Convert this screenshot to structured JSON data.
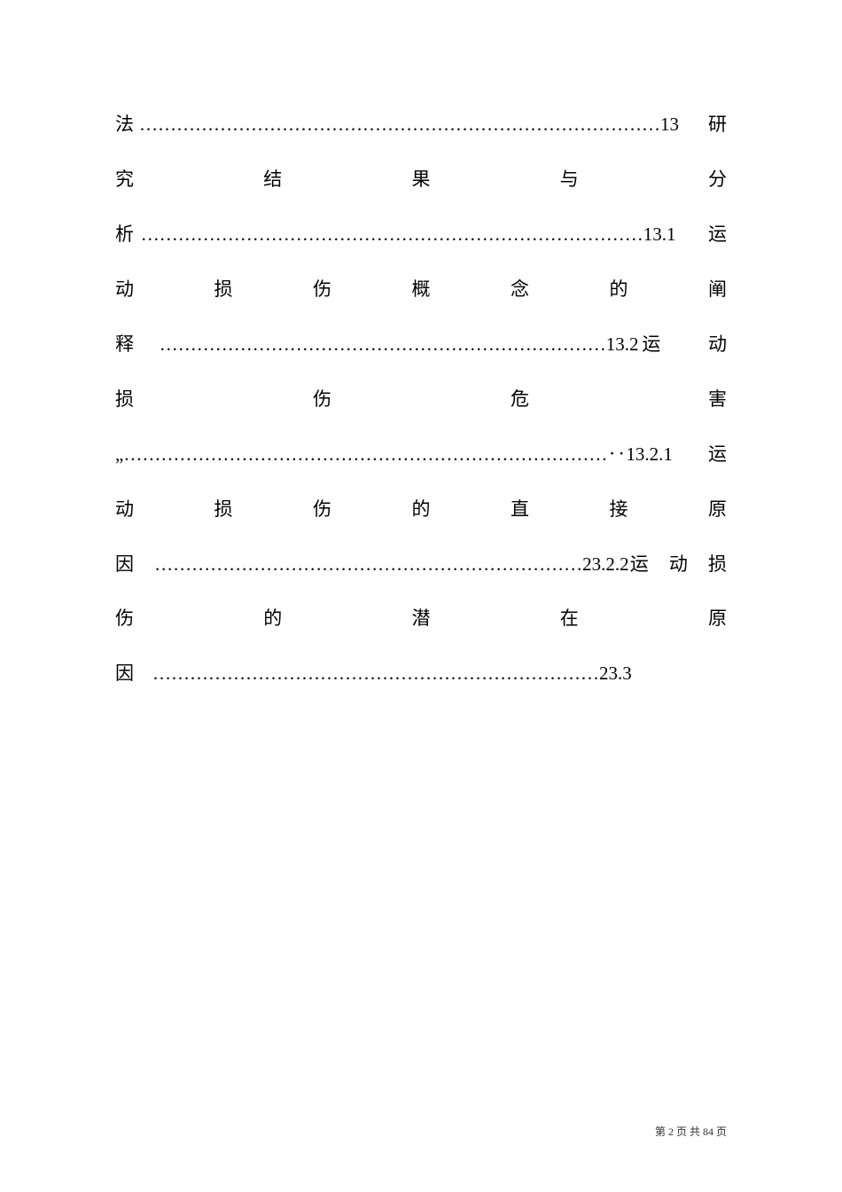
{
  "toc": {
    "text": "法…………………………………………………………………………13　研　究　结　果　与　分析………………………………………………………………………13.1　运　动　损　伤　概　念　的　阐释　………………………………………………………………13.2运　　动　　损　　伤　　危　　害„……………………………………………………………………‥13.2.1　运　动　损　伤　的　直　接　原因　……………………………………………………………23.2.2运　动　损　伤　的　潜　在　原因　………………………………………………………………23.3"
  },
  "footer": {
    "text": "第 2 页 共 84 页"
  },
  "style": {
    "font_size_pt": 16,
    "footer_font_size_pt": 9,
    "text_color": "#000000",
    "background_color": "#ffffff",
    "line_height_ratio": 2.95
  }
}
